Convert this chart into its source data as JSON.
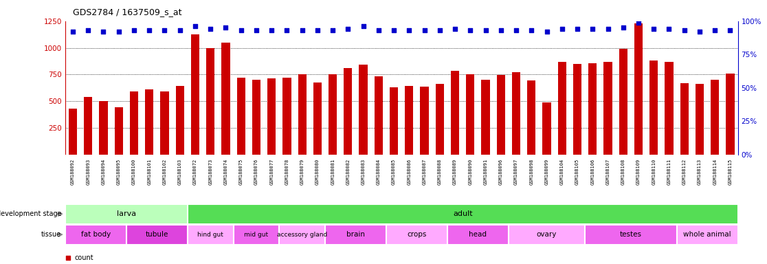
{
  "title": "GDS2784 / 1637509_s_at",
  "samples": [
    "GSM188092",
    "GSM188093",
    "GSM188094",
    "GSM188095",
    "GSM188100",
    "GSM188101",
    "GSM188102",
    "GSM188103",
    "GSM188072",
    "GSM188073",
    "GSM188074",
    "GSM188075",
    "GSM188076",
    "GSM188077",
    "GSM188078",
    "GSM188079",
    "GSM188080",
    "GSM188081",
    "GSM188082",
    "GSM188083",
    "GSM188084",
    "GSM188085",
    "GSM188086",
    "GSM188087",
    "GSM188088",
    "GSM188089",
    "GSM188090",
    "GSM188091",
    "GSM188096",
    "GSM188097",
    "GSM188098",
    "GSM188099",
    "GSM188104",
    "GSM188105",
    "GSM188106",
    "GSM188107",
    "GSM188108",
    "GSM188109",
    "GSM188110",
    "GSM188111",
    "GSM188112",
    "GSM188113",
    "GSM188114",
    "GSM188115"
  ],
  "counts": [
    430,
    540,
    500,
    440,
    590,
    610,
    590,
    645,
    1125,
    1000,
    1050,
    720,
    700,
    710,
    720,
    750,
    675,
    750,
    810,
    845,
    730,
    630,
    640,
    635,
    660,
    785,
    750,
    700,
    745,
    770,
    695,
    490,
    870,
    850,
    855,
    870,
    990,
    1230,
    880,
    870,
    670,
    660,
    700,
    760
  ],
  "percentile_ranks": [
    92,
    93,
    92,
    92,
    93,
    93,
    93,
    93,
    96,
    94,
    95,
    93,
    93,
    93,
    93,
    93,
    93,
    93,
    94,
    96,
    93,
    93,
    93,
    93,
    93,
    94,
    93,
    93,
    93,
    93,
    93,
    92,
    94,
    94,
    94,
    94,
    95,
    99,
    94,
    94,
    93,
    92,
    93,
    93
  ],
  "bar_color": "#cc0000",
  "dot_color": "#0000cc",
  "ylim_left": [
    0,
    1250
  ],
  "ylim_right": [
    0,
    100
  ],
  "yticks_left": [
    250,
    500,
    750,
    1000,
    1250
  ],
  "yticks_right": [
    0,
    25,
    50,
    75,
    100
  ],
  "development_stage_groups": [
    {
      "label": "larva",
      "start": 0,
      "end": 8,
      "color": "#bbffbb"
    },
    {
      "label": "adult",
      "start": 8,
      "end": 44,
      "color": "#55dd55"
    }
  ],
  "tissue_groups": [
    {
      "label": "fat body",
      "start": 0,
      "end": 4,
      "color": "#ee66ee"
    },
    {
      "label": "tubule",
      "start": 4,
      "end": 8,
      "color": "#dd44dd"
    },
    {
      "label": "hind gut",
      "start": 8,
      "end": 11,
      "color": "#ffaaff"
    },
    {
      "label": "mid gut",
      "start": 11,
      "end": 14,
      "color": "#ee66ee"
    },
    {
      "label": "accessory gland",
      "start": 14,
      "end": 17,
      "color": "#ffaaff"
    },
    {
      "label": "brain",
      "start": 17,
      "end": 21,
      "color": "#ee66ee"
    },
    {
      "label": "crops",
      "start": 21,
      "end": 25,
      "color": "#ffaaff"
    },
    {
      "label": "head",
      "start": 25,
      "end": 29,
      "color": "#ee66ee"
    },
    {
      "label": "ovary",
      "start": 29,
      "end": 34,
      "color": "#ffaaff"
    },
    {
      "label": "testes",
      "start": 34,
      "end": 40,
      "color": "#ee66ee"
    },
    {
      "label": "whole animal",
      "start": 40,
      "end": 44,
      "color": "#ffaaff"
    }
  ],
  "bg_color": "#ffffff",
  "bar_width": 0.55,
  "dot_size": 18
}
